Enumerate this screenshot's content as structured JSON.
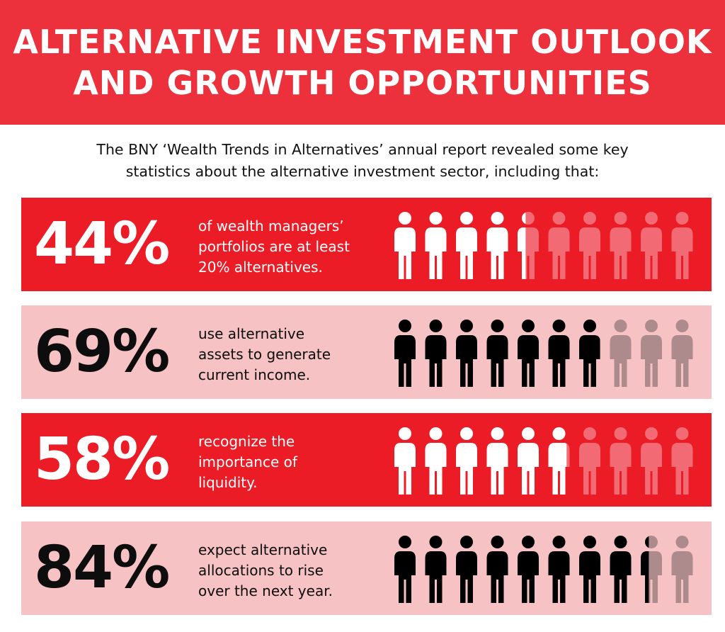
{
  "header": {
    "title_line1": "ALTERNATIVE INVESTMENT OUTLOOK",
    "title_line2": "AND GROWTH OPPORTUNITIES"
  },
  "intro": {
    "line1": "The BNY ‘Wealth Trends in Alternatives’ annual report revealed some key",
    "line2": "statistics about the alternative investment sector, including that:"
  },
  "colors": {
    "header_bg": "#ec313d",
    "red_row_bg": "#ec1c27",
    "pink_row_bg": "#f6c2c3",
    "red_row_filled": "#ffffff",
    "red_row_faded": "#f26a73",
    "pink_row_filled": "#000000",
    "pink_row_faded": "#ad8b8c"
  },
  "stats": [
    {
      "percent": "44%",
      "value": 44,
      "lines": [
        "of wealth managers’",
        "portfolios are at least",
        "20% alternatives."
      ],
      "style": "red",
      "icon": "person-icon"
    },
    {
      "percent": "69%",
      "value": 69,
      "lines": [
        "use alternative",
        "assets to generate",
        "current income."
      ],
      "style": "pink",
      "icon": "person-icon"
    },
    {
      "percent": "58%",
      "value": 58,
      "lines": [
        "recognize the",
        "importance of",
        "liquidity."
      ],
      "style": "red",
      "icon": "person-icon"
    },
    {
      "percent": "84%",
      "value": 84,
      "lines": [
        "expect alternative",
        "allocations to rise",
        "over the next year."
      ],
      "style": "pink",
      "icon": "person-icon"
    }
  ]
}
